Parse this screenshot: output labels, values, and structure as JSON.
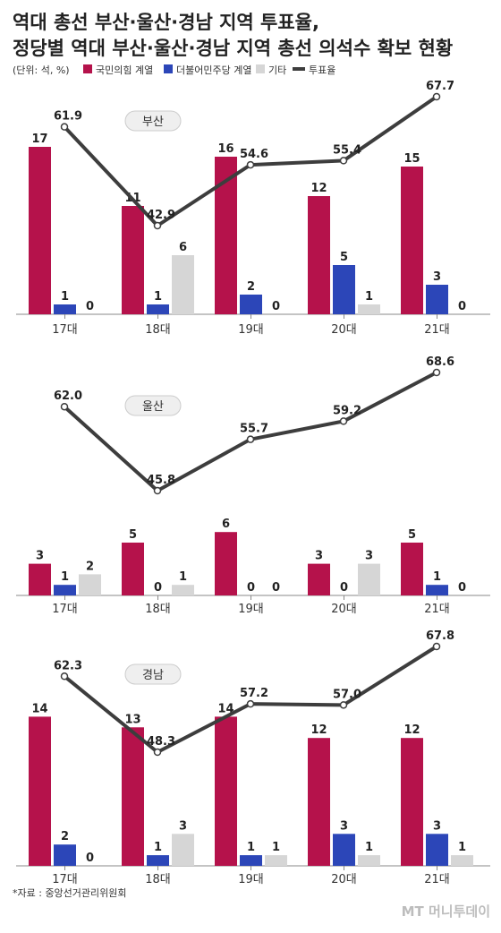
{
  "title_line1": "역대 총선 부산·울산·경남 지역 투표율,",
  "title_line2": "정당별 역대 부산·울산·경남 지역 총선 의석수 확보 현황",
  "unit": "(단위: 석, %)",
  "legend": [
    {
      "label": "국민의힘 계열",
      "color": "#b5124b",
      "kind": "box"
    },
    {
      "label": "더불어민주당 계열",
      "color": "#2c46b8",
      "kind": "box"
    },
    {
      "label": "기타",
      "color": "#d6d6d6",
      "kind": "box"
    },
    {
      "label": "투표율",
      "color": "#3d3d3d",
      "kind": "line"
    }
  ],
  "source": "*자료 : 중앙선거관리위원회",
  "brand": "MT 머니투데이",
  "colors": {
    "ppp": "#b5124b",
    "dem": "#2c46b8",
    "other": "#d6d6d6",
    "turnout": "#3d3d3d",
    "axis": "#888888"
  },
  "chart_data": [
    {
      "type": "bar",
      "region": "부산",
      "categories": [
        "17대",
        "18대",
        "19대",
        "20대",
        "21대"
      ],
      "series": [
        {
          "name": "국민의힘 계열",
          "values": [
            17,
            11,
            16,
            12,
            15
          ]
        },
        {
          "name": "더불어민주당 계열",
          "values": [
            1,
            1,
            2,
            5,
            3
          ]
        },
        {
          "name": "기타",
          "values": [
            0,
            6,
            0,
            1,
            0
          ]
        }
      ],
      "turnout": {
        "name": "투표율",
        "values": [
          61.9,
          42.9,
          54.6,
          55.4,
          67.7
        ]
      }
    },
    {
      "type": "bar",
      "region": "울산",
      "categories": [
        "17대",
        "18대",
        "19대",
        "20대",
        "21대"
      ],
      "series": [
        {
          "name": "국민의힘 계열",
          "values": [
            3,
            5,
            6,
            3,
            5
          ]
        },
        {
          "name": "더불어민주당 계열",
          "values": [
            1,
            0,
            0,
            0,
            1
          ]
        },
        {
          "name": "기타",
          "values": [
            2,
            1,
            0,
            3,
            0
          ]
        }
      ],
      "turnout": {
        "name": "투표율",
        "values": [
          62.0,
          45.8,
          55.7,
          59.2,
          68.6
        ]
      }
    },
    {
      "type": "bar",
      "region": "경남",
      "categories": [
        "17대",
        "18대",
        "19대",
        "20대",
        "21대"
      ],
      "series": [
        {
          "name": "국민의힘 계열",
          "values": [
            14,
            13,
            14,
            12,
            12
          ]
        },
        {
          "name": "더불어민주당 계열",
          "values": [
            2,
            1,
            1,
            3,
            3
          ]
        },
        {
          "name": "기타",
          "values": [
            0,
            3,
            1,
            1,
            1
          ]
        }
      ],
      "turnout": {
        "name": "투표율",
        "values": [
          62.3,
          48.3,
          57.2,
          57.0,
          67.8
        ]
      }
    }
  ]
}
